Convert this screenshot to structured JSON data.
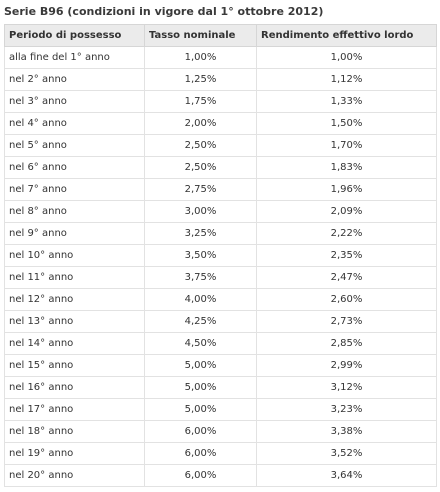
{
  "title": "Serie B96 (condizioni in vigore dal 1° ottobre 2012)",
  "headers": [
    "Periodo di possesso",
    "Tasso nominale",
    "Rendimento effettivo lordo"
  ],
  "rows": [
    [
      "alla fine del 1° anno",
      "1,00%",
      "1,00%"
    ],
    [
      "nel 2° anno",
      "1,25%",
      "1,12%"
    ],
    [
      "nel 3° anno",
      "1,75%",
      "1,33%"
    ],
    [
      "nel 4° anno",
      "2,00%",
      "1,50%"
    ],
    [
      "nel 5° anno",
      "2,50%",
      "1,70%"
    ],
    [
      "nel 6° anno",
      "2,50%",
      "1,83%"
    ],
    [
      "nel 7° anno",
      "2,75%",
      "1,96%"
    ],
    [
      "nel 8° anno",
      "3,00%",
      "2,09%"
    ],
    [
      "nel 9° anno",
      "3,25%",
      "2,22%"
    ],
    [
      "nel 10° anno",
      "3,50%",
      "2,35%"
    ],
    [
      "nel 11° anno",
      "3,75%",
      "2,47%"
    ],
    [
      "nel 12° anno",
      "4,00%",
      "2,60%"
    ],
    [
      "nel 13° anno",
      "4,25%",
      "2,73%"
    ],
    [
      "nel 14° anno",
      "4,50%",
      "2,85%"
    ],
    [
      "nel 15° anno",
      "5,00%",
      "2,99%"
    ],
    [
      "nel 16° anno",
      "5,00%",
      "3,12%"
    ],
    [
      "nel 17° anno",
      "5,00%",
      "3,23%"
    ],
    [
      "nel 18° anno",
      "6,00%",
      "3,38%"
    ],
    [
      "nel 19° anno",
      "6,00%",
      "3,52%"
    ],
    [
      "nel 20° anno",
      "6,00%",
      "3,64%"
    ]
  ]
}
